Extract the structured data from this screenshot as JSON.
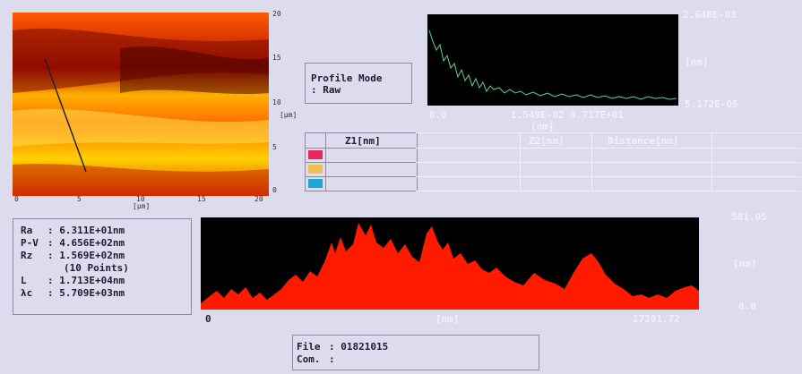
{
  "map": {
    "y_ticks": [
      "20",
      "15",
      "10",
      "5",
      "0"
    ],
    "y_unit": "[µm]",
    "x_ticks": [
      "0",
      "5",
      "10",
      "15",
      "20"
    ],
    "x_unit": "[µm]"
  },
  "profile_mode": {
    "line1": "Profile Mode",
    "line2": ": Raw"
  },
  "spectrum": {
    "top_value": "2.640E-03",
    "y_unit": "[nm]",
    "bottom_value": "5.172E-05",
    "x_start": "0.0",
    "x_end_values": "1.549E-02  6.717E+01",
    "x_unit": "[nm]"
  },
  "cursor_table": {
    "headers": [
      "Z1[nm]",
      "Z2[nm]",
      "Distance[nm]"
    ],
    "swatch_colors": [
      "#e8285a",
      "#f0c24a",
      "#1aa6d6"
    ]
  },
  "stats": [
    {
      "label": "Ra",
      "value": ": 6.311E+01nm"
    },
    {
      "label": "P-V",
      "value": ": 4.656E+02nm"
    },
    {
      "label": "Rz",
      "value": ": 1.569E+02nm"
    },
    {
      "label": "",
      "value": "(10 Points)"
    },
    {
      "label": "L",
      "value": ": 1.713E+04nm"
    },
    {
      "label": "λc",
      "value": ": 5.709E+03nm"
    }
  ],
  "profile_plot": {
    "top_value": "581.05",
    "y_unit": "[nm]",
    "bottom_value": "0.0",
    "x_start": "0",
    "x_unit": "[nm]",
    "x_end": "17201.72"
  },
  "file_info": {
    "file_label": "File",
    "file_value": ": 01821015",
    "com_label": "Com.",
    "com_value": ":"
  }
}
